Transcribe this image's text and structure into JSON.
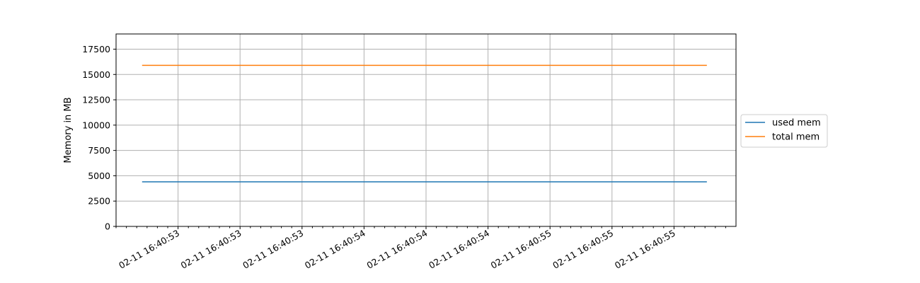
{
  "chart_data": {
    "type": "line",
    "title": "",
    "xlabel": "",
    "ylabel": "Memory in MB",
    "ylim": [
      0,
      19000
    ],
    "yticks": [
      0,
      2500,
      5000,
      7500,
      10000,
      12500,
      15000,
      17500
    ],
    "xlim": [
      0,
      1
    ],
    "xticks": [
      {
        "pos": 0.1,
        "label": "02-11 16:40:53"
      },
      {
        "pos": 0.2,
        "label": "02-11 16:40:53"
      },
      {
        "pos": 0.3,
        "label": "02-11 16:40:53"
      },
      {
        "pos": 0.4,
        "label": "02-11 16:40:54"
      },
      {
        "pos": 0.5,
        "label": "02-11 16:40:54"
      },
      {
        "pos": 0.6,
        "label": "02-11 16:40:54"
      },
      {
        "pos": 0.7,
        "label": "02-11 16:40:55"
      },
      {
        "pos": 0.8,
        "label": "02-11 16:40:55"
      },
      {
        "pos": 0.9,
        "label": "02-11 16:40:55"
      }
    ],
    "grid": true,
    "legend_position": "center-right-outside",
    "series": [
      {
        "name": "used mem",
        "color": "#1f77b4",
        "x": [
          0.042,
          0.953
        ],
        "values": [
          4400,
          4400
        ]
      },
      {
        "name": "total mem",
        "color": "#ff7f0e",
        "x": [
          0.042,
          0.953
        ],
        "values": [
          15900,
          15900
        ]
      }
    ]
  }
}
